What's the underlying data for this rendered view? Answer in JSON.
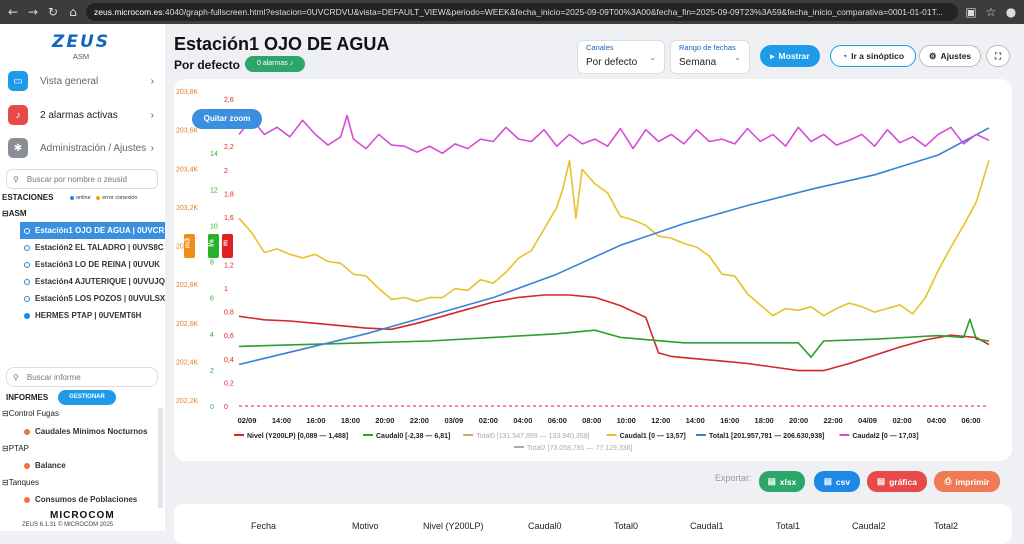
{
  "browser": {
    "url_host": "zeus.microcom.es",
    "url_rest": ":4040/graph-fullscreen.html?estacion=0UVCRDVU&vista=DEFAULT_VIEW&periodo=WEEK&fecha_inicio=2025-09-09T00%3A00&fecha_fin=2025-09-09T23%3A59&fecha_inicio_comparativa=0001-01-01T..."
  },
  "sidebar": {
    "logo": "ZEUS",
    "logo_sub": "ASM",
    "menu": [
      {
        "label": "Vista general",
        "color": "#1e9be8",
        "icon": "monitor-icon"
      },
      {
        "label": "2 alarmas activas",
        "color": "#e84949",
        "icon": "bell-icon"
      },
      {
        "label": "Administración / Ajustes",
        "color": "#8a8f96",
        "icon": "gears-icon"
      }
    ],
    "search_placeholder": "Buscar por nombre o zeusid",
    "stations_title": "ESTACIONES",
    "legend_online": "online",
    "legend_error": "error conexión",
    "group": "ASM",
    "stations": [
      "Estación1 OJO DE AGUA | 0UVCR",
      "Estación2 EL TALADRO | 0UVS8C",
      "Estación3 LO DE REINA | 0UVUK",
      "Estación4 AJUTERIQUE | 0UVUJQ",
      "Estación5 LOS POZOS | 0UVULSX",
      "HERMES PTAP | 0UVEMT6H"
    ],
    "report_search_placeholder": "Buscar informe",
    "reports_title": "INFORMES",
    "manage_label": "GESTIONAR",
    "reports": [
      {
        "group": "Control Fugas",
        "item": "Caudales Mínimos Nocturnos"
      },
      {
        "group": "PTAP",
        "item": "Balance"
      },
      {
        "group": "Tanques",
        "item": "Consumos de Poblaciones"
      }
    ],
    "footer_logo": "MICROCOM",
    "version": "ZEUS 6.1.31 © MICROCOM 2025"
  },
  "header": {
    "title": "Estación1 OJO DE AGUA",
    "subtitle": "Por defecto",
    "alarms_badge": "0 alarmas",
    "channels_label": "Canales",
    "channels_value": "Por defecto",
    "range_label": "Rango de fechas",
    "range_value": "Semana",
    "show_button": "Mostrar",
    "synoptic_button": "Ir a sinóptico",
    "settings_button": "Ajustes"
  },
  "chart": {
    "zoom_reset": "Quitar zoom",
    "export_label": "Exportar:",
    "export_xlsx": "xlsx",
    "export_csv": "csv",
    "export_chart": "gráfica",
    "export_print": "imprimir",
    "unit_m3": "m3",
    "unit_ls": "l/s",
    "unit_m": "m"
  },
  "chart_data": {
    "type": "line",
    "x_ticks": [
      "02/09",
      "14:00",
      "16:00",
      "18:00",
      "20:00",
      "22:00",
      "03/09",
      "02:00",
      "04:00",
      "06:00",
      "08:00",
      "10:00",
      "12:00",
      "14:00",
      "16:00",
      "18:00",
      "20:00",
      "22:00",
      "04/09",
      "02:00",
      "04:00",
      "06:00"
    ],
    "axes": {
      "total_k": {
        "color": "#e67e22",
        "ticks": [
          "203,8K",
          "203,6K",
          "203,4K",
          "203,2K",
          "203K",
          "202,8K",
          "202,6K",
          "202,4K",
          "202,2K"
        ]
      },
      "caudal": {
        "color": "#2ab32a",
        "ticks": [
          "16",
          "14",
          "12",
          "10",
          "8",
          "6",
          "4",
          "2",
          "0"
        ]
      },
      "nivel": {
        "color": "#e02020",
        "ticks": [
          "2,6",
          "2,4",
          "2,2",
          "2",
          "1,8",
          "1,6",
          "1,4",
          "1,2",
          "1",
          "0,8",
          "0,6",
          "0,4",
          "0,2",
          "0"
        ]
      }
    },
    "legend": [
      {
        "name": "Nivel (Y200LP) [0,089 — 1,488]",
        "color": "#d62728"
      },
      {
        "name": "Caudal0 [-2,38 — 6,81]",
        "color": "#2ca02c"
      },
      {
        "name": "Total0 [131.547,859 — 133.940,359]",
        "color": "#c8aa6e",
        "faded": true
      },
      {
        "name": "Caudal1 [0 — 13,57]",
        "color": "#e6c229"
      },
      {
        "name": "Total1 [201.957,781 — 206.630,938]",
        "color": "#3b82d6"
      },
      {
        "name": "Caudal2 [0 — 17,03]",
        "color": "#d84ad8"
      },
      {
        "name": "Total2 [73.058,781 — 77.129,336]",
        "color": "#aaaaaa",
        "faded": true
      }
    ],
    "series": [
      {
        "name": "Nivel (Y200LP)",
        "color": "#d62728",
        "axis": "nivel",
        "values": [
          [
            0,
            0.76
          ],
          [
            4,
            0.73
          ],
          [
            8,
            0.72
          ],
          [
            12,
            0.7
          ],
          [
            16,
            0.68
          ],
          [
            20,
            0.66
          ],
          [
            24,
            0.65
          ],
          [
            28,
            0.7
          ],
          [
            32,
            0.76
          ],
          [
            36,
            0.82
          ],
          [
            40,
            0.88
          ],
          [
            44,
            0.92
          ],
          [
            48,
            0.94
          ],
          [
            52,
            0.94
          ],
          [
            56,
            0.92
          ],
          [
            60,
            0.85
          ],
          [
            64,
            0.75
          ],
          [
            66,
            0.45
          ],
          [
            68,
            0.42
          ],
          [
            72,
            0.4
          ],
          [
            76,
            0.38
          ],
          [
            80,
            0.36
          ],
          [
            84,
            0.33
          ],
          [
            88,
            0.3
          ],
          [
            92,
            0.3
          ],
          [
            96,
            0.36
          ],
          [
            100,
            0.43
          ],
          [
            104,
            0.5
          ],
          [
            108,
            0.56
          ],
          [
            112,
            0.6
          ],
          [
            116,
            0.58
          ],
          [
            118,
            0.52
          ]
        ]
      },
      {
        "name": "Caudal0",
        "color": "#2ca02c",
        "axis": "caudal",
        "values": [
          [
            0,
            3.3
          ],
          [
            10,
            3.4
          ],
          [
            20,
            3.5
          ],
          [
            30,
            3.6
          ],
          [
            40,
            3.8
          ],
          [
            50,
            4.0
          ],
          [
            56,
            4.2
          ],
          [
            60,
            3.8
          ],
          [
            70,
            3.5
          ],
          [
            80,
            3.5
          ],
          [
            88,
            3.5
          ],
          [
            90,
            2.7
          ],
          [
            92,
            3.6
          ],
          [
            100,
            3.7
          ],
          [
            110,
            3.9
          ],
          [
            114,
            3.8
          ],
          [
            115,
            4.8
          ],
          [
            116,
            3.7
          ],
          [
            118,
            3.6
          ]
        ]
      },
      {
        "name": "Caudal1",
        "color": "#e6c229",
        "axis": "caudal",
        "values": [
          [
            0,
            10.4
          ],
          [
            2,
            9.6
          ],
          [
            4,
            8.5
          ],
          [
            6,
            8.7
          ],
          [
            8,
            8.4
          ],
          [
            10,
            8.2
          ],
          [
            12,
            8.4
          ],
          [
            14,
            8.0
          ],
          [
            16,
            7.9
          ],
          [
            18,
            7.3
          ],
          [
            20,
            7.2
          ],
          [
            22,
            6.5
          ],
          [
            24,
            5.9
          ],
          [
            26,
            6.0
          ],
          [
            28,
            5.8
          ],
          [
            30,
            6.0
          ],
          [
            32,
            6.0
          ],
          [
            34,
            6.5
          ],
          [
            36,
            6.4
          ],
          [
            38,
            7.0
          ],
          [
            40,
            6.8
          ],
          [
            42,
            7.4
          ],
          [
            44,
            8.2
          ],
          [
            46,
            8.6
          ],
          [
            48,
            9.8
          ],
          [
            50,
            11.0
          ],
          [
            51,
            12.1
          ],
          [
            52,
            13.6
          ],
          [
            53,
            10.4
          ],
          [
            54,
            13.1
          ],
          [
            56,
            12.3
          ],
          [
            58,
            11.8
          ],
          [
            60,
            10.5
          ],
          [
            62,
            10.3
          ],
          [
            64,
            10.0
          ],
          [
            66,
            9.4
          ],
          [
            68,
            9.3
          ],
          [
            70,
            9.0
          ],
          [
            72,
            8.8
          ],
          [
            74,
            8.3
          ],
          [
            76,
            7.3
          ],
          [
            78,
            7.2
          ],
          [
            80,
            6.2
          ],
          [
            82,
            5.6
          ],
          [
            84,
            5.0
          ],
          [
            86,
            5.4
          ],
          [
            88,
            5.3
          ],
          [
            90,
            5.5
          ],
          [
            92,
            5.0
          ],
          [
            94,
            5.4
          ],
          [
            96,
            5.7
          ],
          [
            98,
            5.5
          ],
          [
            100,
            5.2
          ],
          [
            102,
            5.4
          ],
          [
            104,
            5.6
          ],
          [
            106,
            5.1
          ],
          [
            108,
            6.0
          ],
          [
            110,
            7.5
          ],
          [
            112,
            8.8
          ],
          [
            114,
            10.0
          ],
          [
            116,
            11.3
          ],
          [
            118,
            13.6
          ]
        ]
      },
      {
        "name": "Total1",
        "color": "#3b82d6",
        "axis": "caudal",
        "values": [
          [
            0,
            2.3
          ],
          [
            20,
            4.0
          ],
          [
            40,
            6.0
          ],
          [
            50,
            7.3
          ],
          [
            60,
            8.9
          ],
          [
            70,
            10.1
          ],
          [
            80,
            11.1
          ],
          [
            90,
            12.0
          ],
          [
            100,
            12.8
          ],
          [
            110,
            13.9
          ],
          [
            118,
            15.4
          ]
        ]
      },
      {
        "name": "Caudal2",
        "color": "#d84ad8",
        "axis": "nivel",
        "values": [
          [
            0,
            2.3
          ],
          [
            2,
            2.43
          ],
          [
            4,
            2.3
          ],
          [
            6,
            2.36
          ],
          [
            8,
            2.28
          ],
          [
            10,
            2.42
          ],
          [
            12,
            2.3
          ],
          [
            14,
            2.21
          ],
          [
            16,
            2.28
          ],
          [
            17,
            2.46
          ],
          [
            18,
            2.26
          ],
          [
            20,
            2.18
          ],
          [
            22,
            2.3
          ],
          [
            24,
            2.21
          ],
          [
            26,
            2.2
          ],
          [
            28,
            2.15
          ],
          [
            30,
            2.2
          ],
          [
            32,
            2.14
          ],
          [
            34,
            2.22
          ],
          [
            36,
            2.18
          ],
          [
            38,
            2.26
          ],
          [
            40,
            2.24
          ],
          [
            42,
            2.36
          ],
          [
            44,
            2.26
          ],
          [
            46,
            2.24
          ],
          [
            48,
            2.34
          ],
          [
            50,
            2.2
          ],
          [
            52,
            2.3
          ],
          [
            54,
            2.22
          ],
          [
            56,
            2.26
          ],
          [
            58,
            2.2
          ],
          [
            60,
            2.35
          ],
          [
            62,
            2.18
          ],
          [
            64,
            2.34
          ],
          [
            66,
            2.24
          ],
          [
            68,
            2.3
          ],
          [
            70,
            2.22
          ],
          [
            72,
            2.34
          ],
          [
            74,
            2.24
          ],
          [
            76,
            2.26
          ],
          [
            78,
            2.22
          ],
          [
            80,
            2.35
          ],
          [
            82,
            2.24
          ],
          [
            84,
            2.3
          ],
          [
            86,
            2.2
          ],
          [
            88,
            2.36
          ],
          [
            90,
            2.24
          ],
          [
            92,
            2.3
          ],
          [
            94,
            2.21
          ],
          [
            96,
            2.25
          ],
          [
            98,
            2.3
          ],
          [
            100,
            2.2
          ],
          [
            102,
            2.34
          ],
          [
            104,
            2.23
          ],
          [
            106,
            2.28
          ],
          [
            108,
            2.2
          ],
          [
            110,
            2.3
          ],
          [
            112,
            2.36
          ],
          [
            114,
            2.22
          ],
          [
            116,
            2.3
          ],
          [
            118,
            2.25
          ]
        ]
      }
    ],
    "x_range": [
      0,
      118
    ],
    "caudal_range": [
      0,
      17
    ],
    "nivel_range": [
      0,
      2.6
    ]
  },
  "table": {
    "headers": [
      "Fecha",
      "Motivo",
      "Nivel (Y200LP)",
      "Caudal0",
      "Total0",
      "Caudal1",
      "Total1",
      "Caudal2",
      "Total2"
    ]
  }
}
